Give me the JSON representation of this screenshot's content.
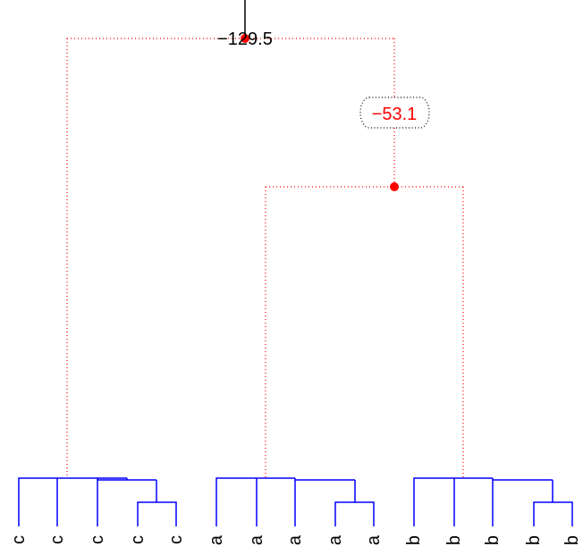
{
  "colors": {
    "cluster_branch": "#0000ff",
    "upper_branch": "#ff0000",
    "node_marker": "#ff0000",
    "root_label": "#000000",
    "inner_label": "#ff0000",
    "leaf_label": "#000000",
    "label_box_border": "#000000"
  },
  "root": {
    "label": "−129.5"
  },
  "inner_node": {
    "label": "−53.1"
  },
  "leaves": [
    "c",
    "c",
    "c",
    "c",
    "c",
    "a",
    "a",
    "a",
    "a",
    "a",
    "b",
    "b",
    "b",
    "b",
    "b"
  ],
  "clusters": [
    {
      "label": "c",
      "leaf_count": 5
    },
    {
      "label": "a",
      "leaf_count": 5
    },
    {
      "label": "b",
      "leaf_count": 5
    }
  ]
}
